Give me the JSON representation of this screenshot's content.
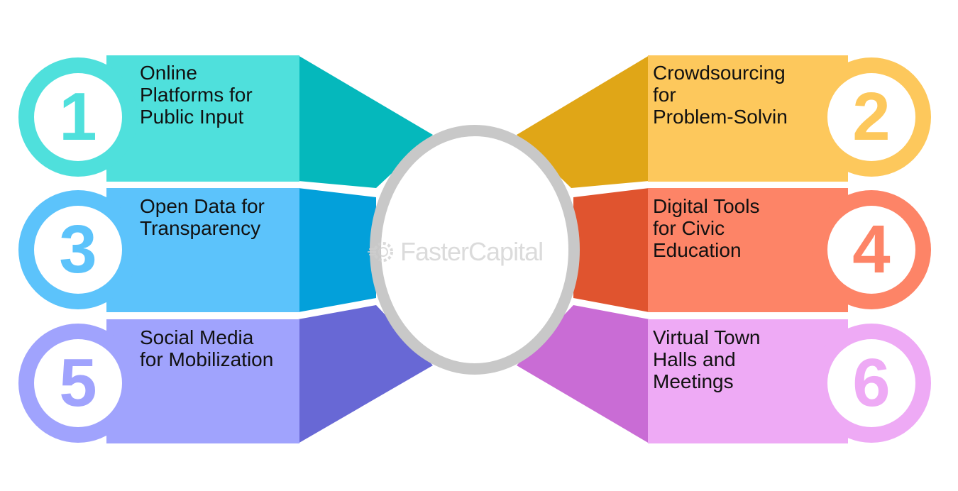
{
  "diagram": {
    "items": [
      {
        "number": "1",
        "label": "Online\nPlatforms for\nPublic Input",
        "light": "#4fe0dc",
        "dark": "#05b8bc",
        "num_color": "#4fe0dc"
      },
      {
        "number": "2",
        "label": "Crowdsourcing\nfor\nProblem-Solvin",
        "light": "#fdc85c",
        "dark": "#e0a617",
        "num_color": "#fdc85c"
      },
      {
        "number": "3",
        "label": "Open Data for\nTransparency",
        "light": "#5cc3fb",
        "dark": "#03a0da",
        "num_color": "#5cc3fb"
      },
      {
        "number": "4",
        "label": "Digital Tools\nfor Civic\nEducation",
        "light": "#fd8467",
        "dark": "#e0542f",
        "num_color": "#fd8467"
      },
      {
        "number": "5",
        "label": "Social Media\nfor Mobilization",
        "light": "#a0a3fd",
        "dark": "#6868d5",
        "num_color": "#a0a3fd"
      },
      {
        "number": "6",
        "label": "Virtual Town\nHalls and\nMeetings",
        "light": "#eeaaf5",
        "dark": "#c96cd5",
        "num_color": "#eeaaf5"
      }
    ],
    "center_ring_color": "#c8c8c8",
    "watermark": "FasterCapital"
  }
}
